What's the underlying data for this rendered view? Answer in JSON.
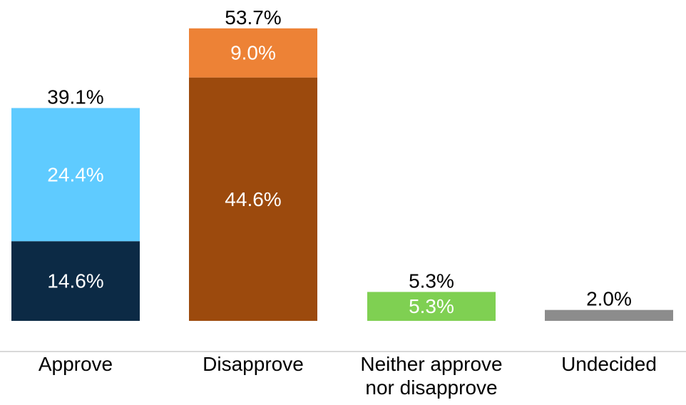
{
  "chart_data": {
    "type": "bar",
    "stacked": true,
    "categories": [
      "Approve",
      "Disapprove",
      "Neither approve\nnor disapprove",
      "Undecided"
    ],
    "bars": [
      {
        "category": "Approve",
        "total": 39.1,
        "total_label": "39.1%",
        "segments": [
          {
            "value": 14.6,
            "label": "14.6%",
            "color": "#0c2a45",
            "label_color": "#ffffff"
          },
          {
            "value": 24.4,
            "label": "24.4%",
            "color": "#5fcbff",
            "label_color": "#ffffff"
          }
        ]
      },
      {
        "category": "Disapprove",
        "total": 53.7,
        "total_label": "53.7%",
        "segments": [
          {
            "value": 44.6,
            "label": "44.6%",
            "color": "#9c4a0d",
            "label_color": "#ffffff"
          },
          {
            "value": 9.0,
            "label": "9.0%",
            "color": "#ed8236",
            "label_color": "#ffffff"
          }
        ]
      },
      {
        "category": "Neither approve nor disapprove",
        "total": 5.3,
        "total_label": "5.3%",
        "segments": [
          {
            "value": 5.3,
            "label": "5.3%",
            "color": "#7fd052",
            "label_color": "#ffffff"
          }
        ]
      },
      {
        "category": "Undecided",
        "total": 2.0,
        "total_label": "2.0%",
        "segments": [
          {
            "value": 2.0,
            "label": "",
            "color": "#8c8c8c",
            "label_color": "#ffffff"
          }
        ]
      }
    ],
    "ylim": [
      0,
      53.7
    ],
    "grid": false,
    "legend": "none",
    "axis_color": "#d9d9d9"
  }
}
